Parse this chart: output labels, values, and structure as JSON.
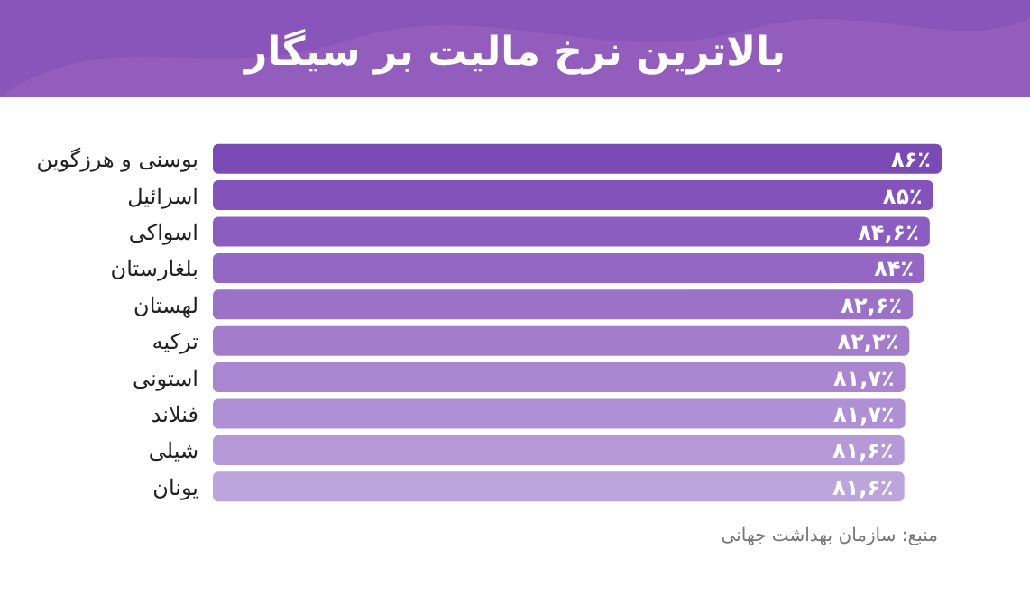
{
  "chart_data": {
    "type": "bar",
    "orientation": "horizontal",
    "title": "بالاترین نرخ مالیت بر سیگار",
    "categories": [
      "بوسنی و هرزگوین",
      "اسرائیل",
      "اسواکی",
      "بلغارستان",
      "لهستان",
      "ترکیه",
      "استونی",
      "فنلاند",
      "شیلی",
      "یونان"
    ],
    "values": [
      86,
      85,
      84.6,
      84,
      82.6,
      82.2,
      81.7,
      81.7,
      81.6,
      81.6
    ],
    "value_labels": [
      "۸۶٪",
      "۸۵٪",
      "۸۴,۶٪",
      "۸۴٪",
      "۸۲,۶٪",
      "۸۲,۲٪",
      "۸۱,۷٪",
      "۸۱,۷٪",
      "۸۱,۶٪",
      "۸۱,۶٪"
    ],
    "colors": [
      "#7a4bb5",
      "#8353bb",
      "#8c5dc0",
      "#9467c4",
      "#9c72c8",
      "#a37ccc",
      "#aa86d0",
      "#b090d4",
      "#b69ad8",
      "#bca4dc"
    ],
    "xlim": [
      0,
      86
    ],
    "annotations": [
      "منبع: سازمان بهداشت جهانی"
    ]
  }
}
